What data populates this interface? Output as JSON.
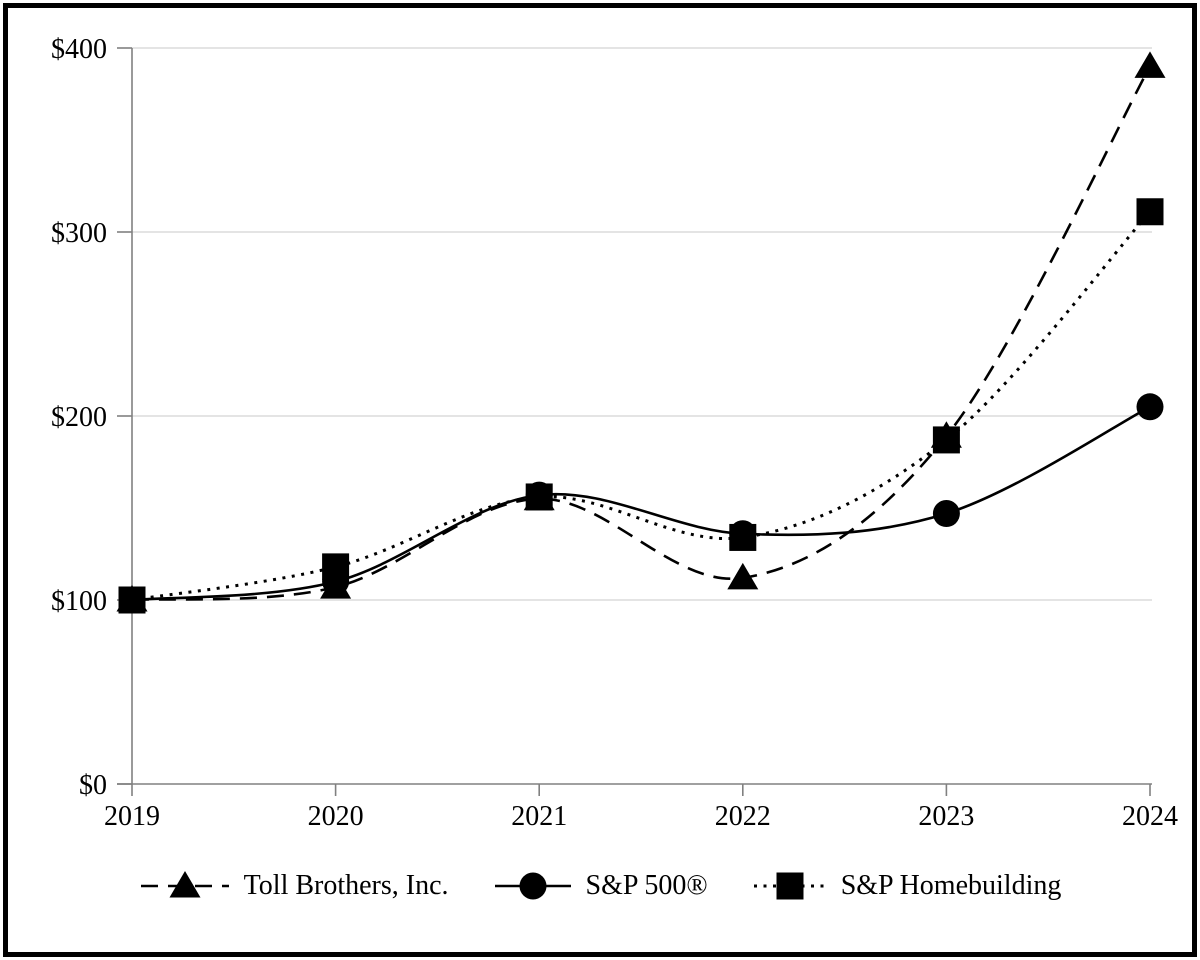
{
  "chart_data": {
    "type": "line",
    "title": "",
    "xlabel": "",
    "ylabel": "",
    "x": [
      "2019",
      "2020",
      "2021",
      "2022",
      "2023",
      "2024"
    ],
    "series": [
      {
        "name": "Toll Brothers, Inc.",
        "line_style": "dashed",
        "marker": "triangle",
        "values": [
          100,
          107,
          155,
          112,
          189,
          390
        ]
      },
      {
        "name": "S&P 500®",
        "line_style": "solid",
        "marker": "circle",
        "values": [
          100,
          110,
          157,
          136,
          147,
          205
        ]
      },
      {
        "name": "S&P Homebuilding",
        "line_style": "dotted",
        "marker": "square",
        "values": [
          100,
          118,
          156,
          134,
          187,
          311
        ]
      }
    ],
    "ylim": [
      0,
      400
    ],
    "ytick_values": [
      0,
      100,
      200,
      300,
      400
    ],
    "ytick_labels": [
      "$0",
      "$100",
      "$200",
      "$300",
      "$400"
    ],
    "xtick_labels": [
      "2019",
      "2020",
      "2021",
      "2022",
      "2023",
      "2024"
    ],
    "grid": "horizontal",
    "legend_position": "bottom",
    "colors": {
      "series_line": "#000000",
      "marker_fill": "#000000",
      "gridline": "#dcdcdc",
      "axis": "#808080",
      "text": "#000000",
      "background": "#ffffff",
      "frame_border": "#000000"
    }
  }
}
